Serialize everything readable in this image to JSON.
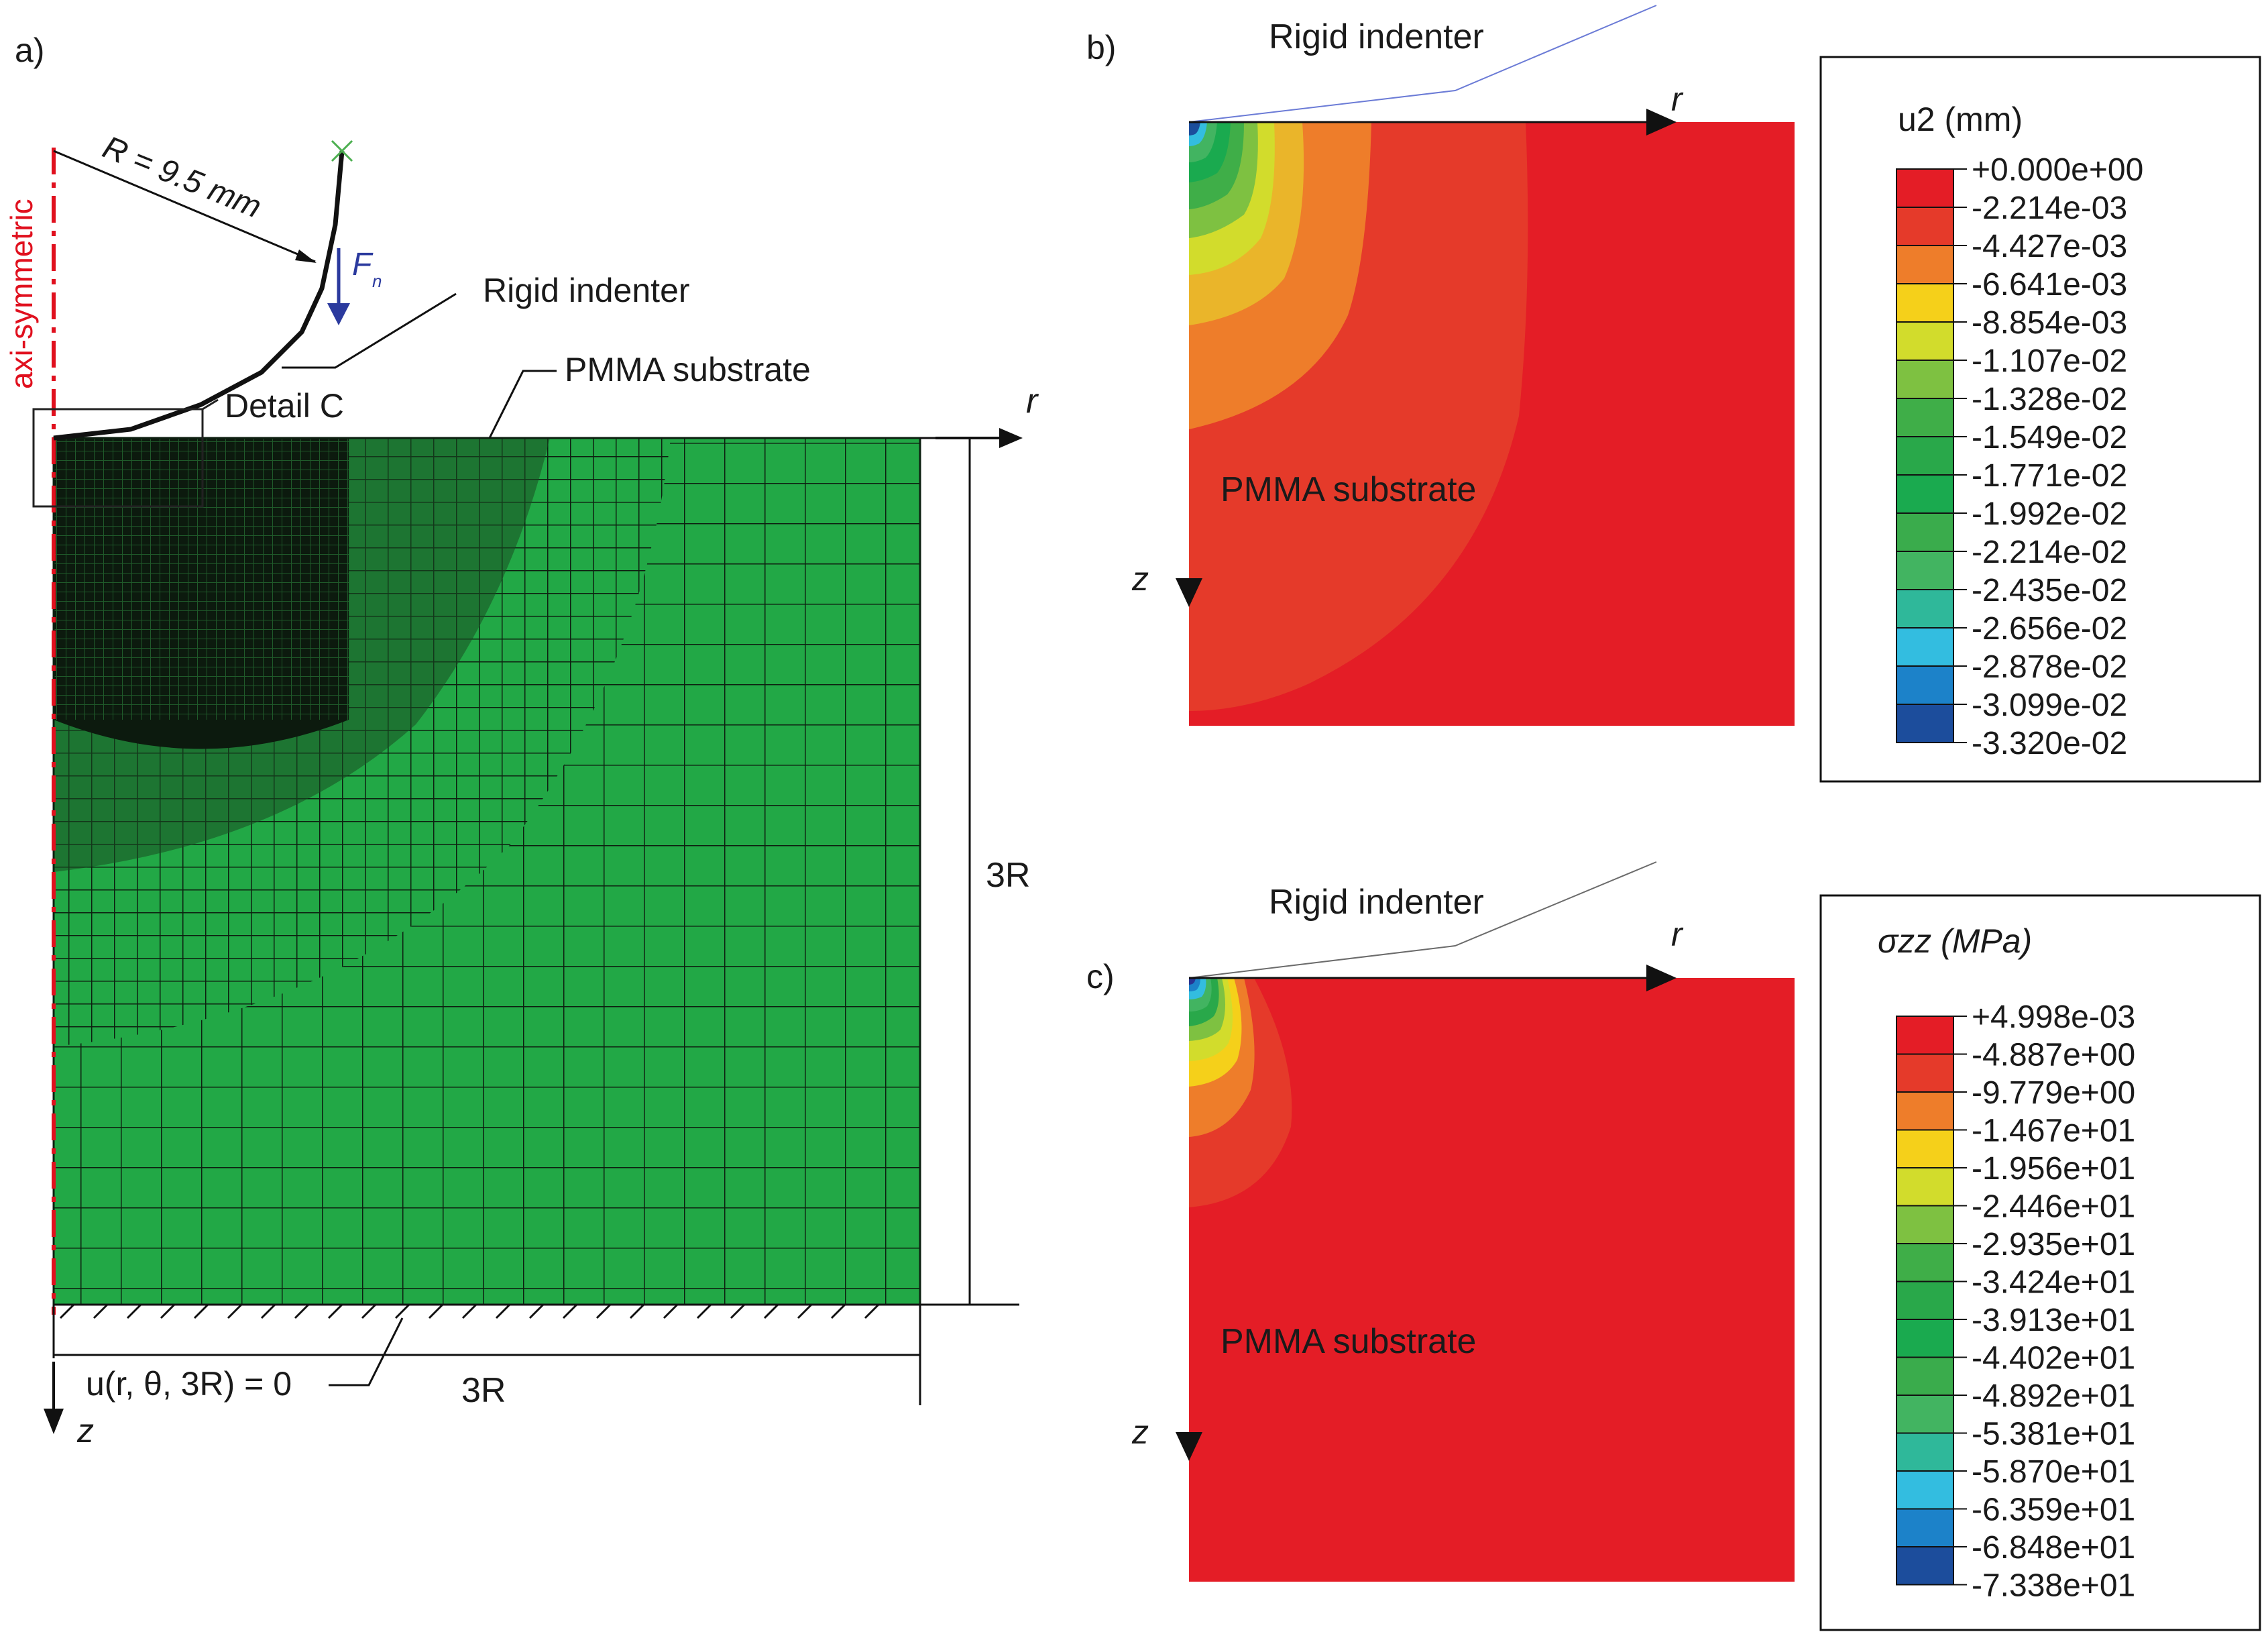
{
  "panel_a": {
    "label": "a)",
    "axi_symmetric": "axi-symmetric",
    "radius_label": "R = 9.5 mm",
    "force_label": "F",
    "force_subscript": "n",
    "indenter_label": "Rigid indenter",
    "substrate_label": "PMMA substrate",
    "detail_label": "Detail C",
    "r_axis": "r",
    "z_axis": "z",
    "height_label": "3R",
    "width_label": "3R",
    "bc_label": "u(r, θ, 3R) = 0"
  },
  "panel_b": {
    "label": "b)",
    "indenter_label": "Rigid indenter",
    "substrate_label": "PMMA substrate",
    "r_axis": "r",
    "z_axis": "z",
    "legend_title": "u2 (mm)",
    "legend_values": [
      "+0.000e+00",
      "-2.214e-03",
      "-4.427e-03",
      "-6.641e-03",
      "-8.854e-03",
      "-1.107e-02",
      "-1.328e-02",
      "-1.549e-02",
      "-1.771e-02",
      "-1.992e-02",
      "-2.214e-02",
      "-2.435e-02",
      "-2.656e-02",
      "-2.878e-02",
      "-3.099e-02",
      "-3.320e-02"
    ]
  },
  "panel_c": {
    "label": "c)",
    "indenter_label": "Rigid indenter",
    "substrate_label": "PMMA substrate",
    "r_axis": "r",
    "z_axis": "z",
    "legend_title": "σzz (MPa)",
    "legend_values": [
      "+4.998e-03",
      "-4.887e+00",
      "-9.779e+00",
      "-1.467e+01",
      "-1.956e+01",
      "-2.446e+01",
      "-2.935e+01",
      "-3.424e+01",
      "-3.913e+01",
      "-4.402e+01",
      "-4.892e+01",
      "-5.381e+01",
      "-5.870e+01",
      "-6.359e+01",
      "-6.848e+01",
      "-7.338e+01"
    ]
  },
  "colors": {
    "mesh_green": "#22a846",
    "mesh_line": "#0d1f10",
    "axis_red": "#e0101e",
    "force_blue": "#2b3a9e",
    "contour_scale": [
      "#e41d26",
      "#e53a2a",
      "#ee7d2a",
      "#f5d01a",
      "#d2dc2c",
      "#7ec141",
      "#3fae48",
      "#29a84a",
      "#1aaa4f",
      "#3aac4c",
      "#42b461",
      "#2fb89a",
      "#33bde0",
      "#1c82c9",
      "#1c4d9c",
      "#283493"
    ]
  }
}
